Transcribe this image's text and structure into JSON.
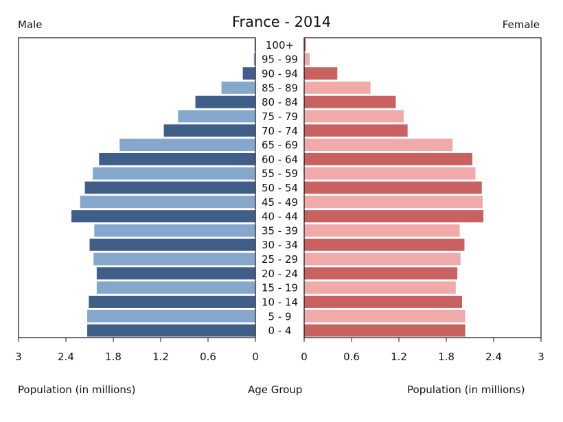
{
  "chart_data": {
    "type": "bar",
    "title": "France - 2014",
    "left_label": "Male",
    "right_label": "Female",
    "xlabel_left": "Population (in millions)",
    "xlabel_center": "Age Group",
    "xlabel_right": "Population (in millions)",
    "xlim": [
      0,
      3
    ],
    "tick_values": [
      0,
      0.6,
      1.2,
      1.8,
      2.4,
      3
    ],
    "left_tick_labels": [
      "3",
      "2.4",
      "1.8",
      "1.2",
      "0.6",
      "0"
    ],
    "right_tick_labels": [
      "0",
      "0.6",
      "1.2",
      "1.8",
      "2.4",
      "3"
    ],
    "categories": [
      "0 - 4",
      "5 - 9",
      "10 - 14",
      "15 - 19",
      "20 - 24",
      "25 - 29",
      "30 - 34",
      "35 - 39",
      "40 - 44",
      "45 - 49",
      "50 - 54",
      "55 - 59",
      "60 - 64",
      "65 - 69",
      "70 - 74",
      "75 - 79",
      "80 - 84",
      "85 - 89",
      "90 - 94",
      "95 - 99",
      "100+"
    ],
    "series": [
      {
        "name": "Male",
        "values": [
          2.13,
          2.13,
          2.11,
          2.01,
          2.01,
          2.05,
          2.1,
          2.04,
          2.33,
          2.22,
          2.16,
          2.06,
          1.98,
          1.72,
          1.16,
          0.98,
          0.76,
          0.43,
          0.16,
          0.02,
          0.01
        ]
      },
      {
        "name": "Female",
        "values": [
          2.04,
          2.04,
          2.0,
          1.92,
          1.94,
          1.98,
          2.03,
          1.97,
          2.27,
          2.26,
          2.25,
          2.17,
          2.13,
          1.88,
          1.31,
          1.26,
          1.16,
          0.84,
          0.42,
          0.07,
          0.02
        ]
      }
    ],
    "colors": {
      "male_dark": "#3f5f88",
      "male_light": "#86a7cc",
      "female_dark": "#c96161",
      "female_light": "#f0aaaa",
      "axis": "#111111"
    }
  }
}
